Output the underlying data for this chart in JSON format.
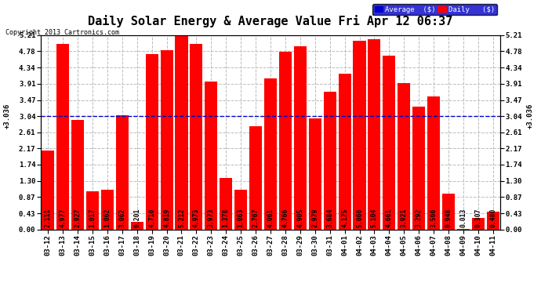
{
  "title": "Daily Solar Energy & Average Value Fri Apr 12 06:37",
  "copyright": "Copyright 2013 Cartronics.com",
  "average_value": 3.036,
  "categories": [
    "03-12",
    "03-13",
    "03-14",
    "03-15",
    "03-16",
    "03-17",
    "03-18",
    "03-19",
    "03-20",
    "03-21",
    "03-22",
    "03-23",
    "03-24",
    "03-25",
    "03-26",
    "03-27",
    "03-28",
    "03-29",
    "03-30",
    "03-31",
    "04-01",
    "04-02",
    "04-03",
    "04-04",
    "04-05",
    "04-06",
    "04-07",
    "04-08",
    "04-09",
    "04-10",
    "04-11"
  ],
  "values": [
    2.111,
    4.977,
    2.927,
    1.017,
    1.062,
    3.062,
    0.201,
    4.71,
    4.819,
    5.212,
    4.973,
    3.973,
    1.378,
    1.063,
    2.767,
    4.061,
    4.766,
    4.905,
    2.979,
    3.684,
    4.175,
    5.06,
    5.104,
    4.661,
    3.921,
    3.292,
    3.566,
    0.948,
    0.013,
    0.307,
    0.48
  ],
  "bar_color": "#ff0000",
  "avg_line_color": "#0000cc",
  "bg_color": "#ffffff",
  "grid_color": "#bbbbbb",
  "ylim": [
    0.0,
    5.21
  ],
  "yticks": [
    0.0,
    0.43,
    0.87,
    1.3,
    1.74,
    2.17,
    2.61,
    3.04,
    3.47,
    3.91,
    4.34,
    4.78,
    5.21
  ],
  "legend_avg_color": "#0000cc",
  "legend_daily_color": "#ff0000",
  "title_fontsize": 11,
  "tick_fontsize": 6.5,
  "bar_label_fontsize": 5.8
}
